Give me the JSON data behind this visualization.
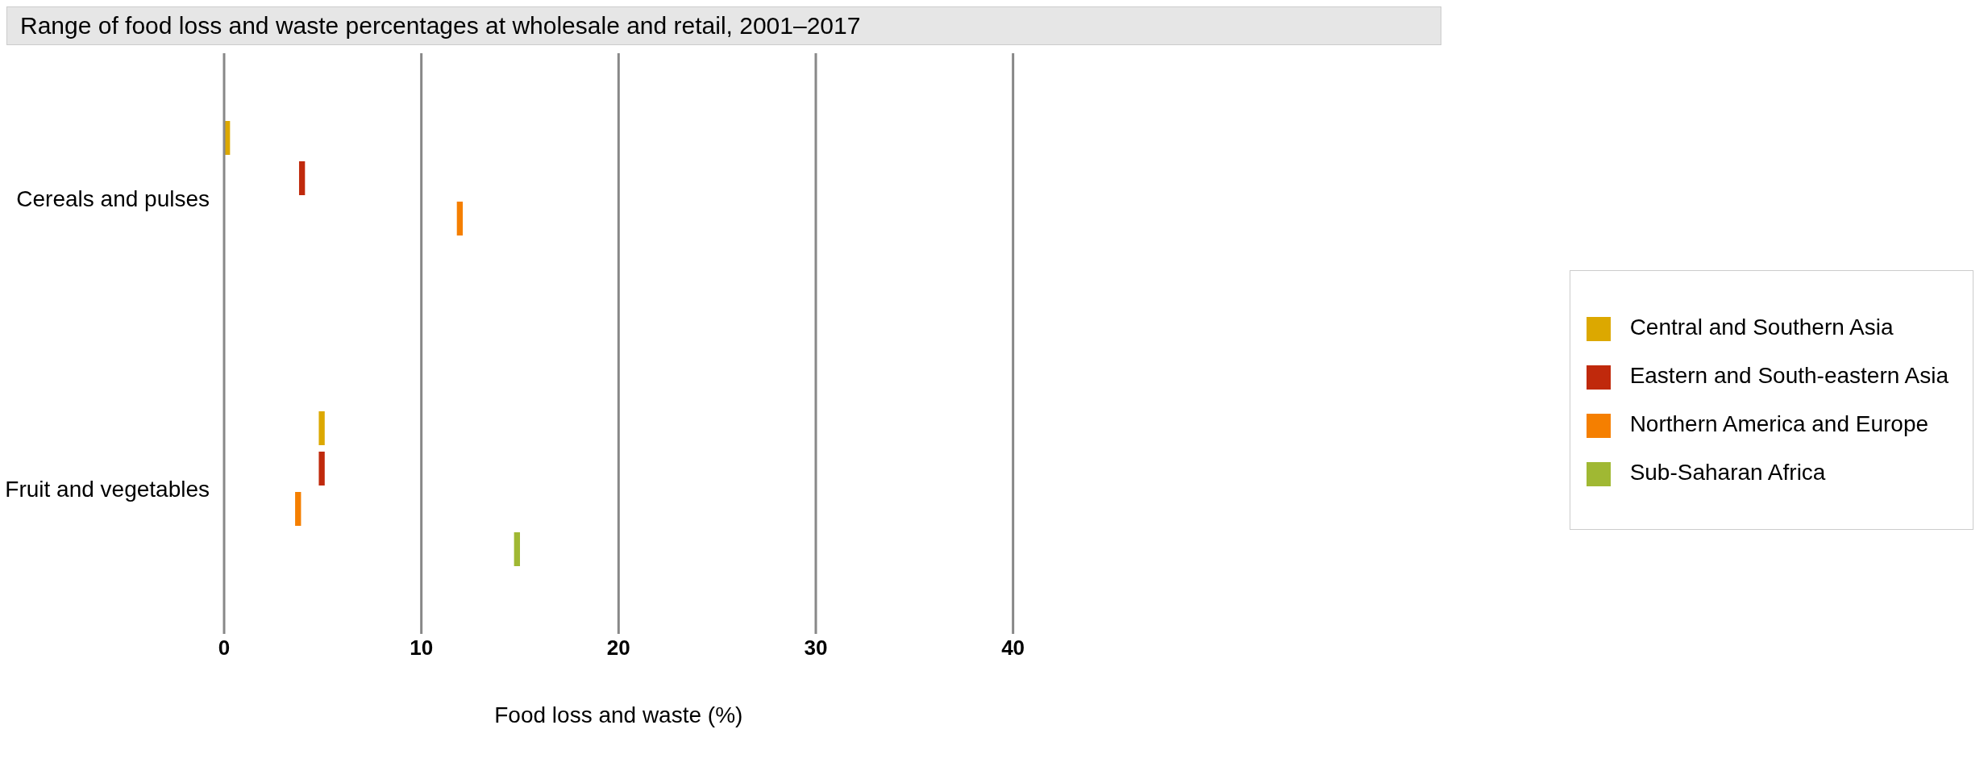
{
  "chart_data": {
    "type": "bar",
    "orientation": "horizontal",
    "title": "Range of food loss and waste percentages at wholesale and retail, 2001–2017",
    "xlabel": "Food loss and waste (%)",
    "categories": [
      "Cereals and pulses",
      "Fruit and vegetables"
    ],
    "series": [
      {
        "name": "Central and Southern Asia",
        "color": "#dca800",
        "base": [
          0,
          4.8
        ],
        "values": [
          0.3,
          0.3
        ]
      },
      {
        "name": "Eastern and South-eastern Asia",
        "color": "#c0290c",
        "base": [
          3.8,
          4.8
        ],
        "values": [
          0.3,
          0.3
        ]
      },
      {
        "name": "Northern America and Europe",
        "color": "#f57f00",
        "base": [
          11.8,
          3.6
        ],
        "values": [
          0.3,
          0.3
        ]
      },
      {
        "name": "Sub-Saharan Africa",
        "color": "#a0b833",
        "base": [
          null,
          14.7
        ],
        "values": [
          null,
          0.3
        ]
      }
    ],
    "xlim": [
      0,
      40
    ],
    "xticks": [
      0,
      10,
      20,
      30,
      40
    ],
    "grid": "x",
    "legend": "right"
  }
}
